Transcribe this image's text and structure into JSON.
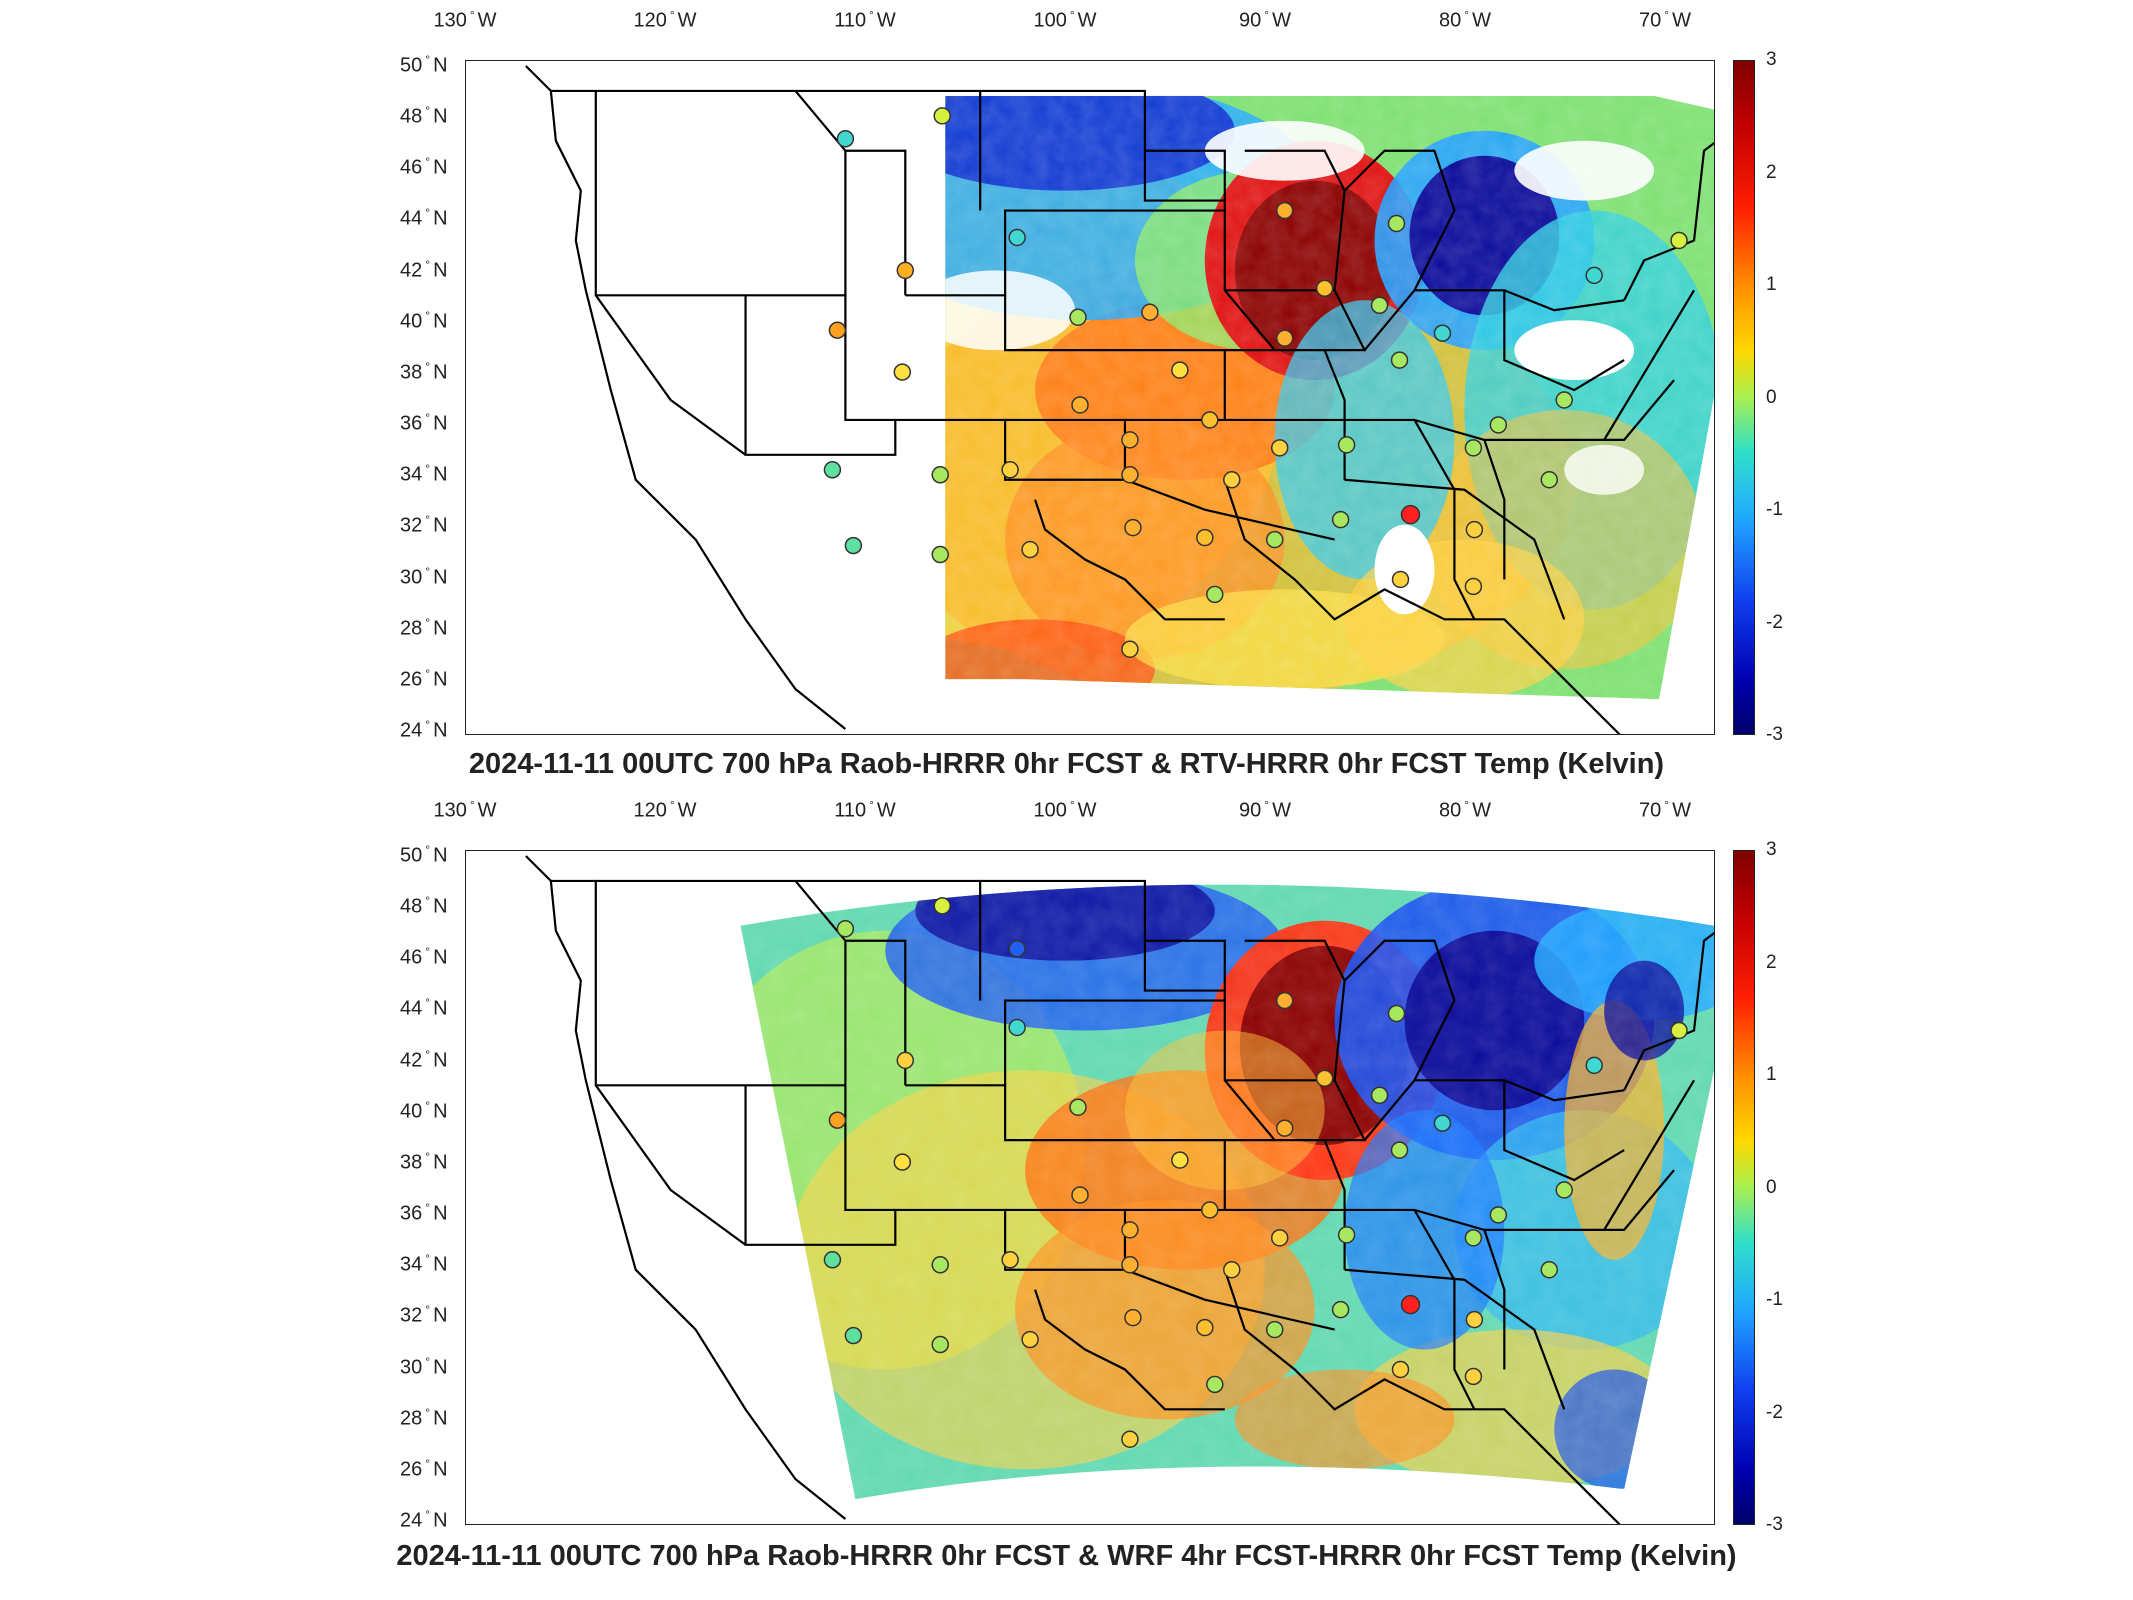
{
  "panels": [
    {
      "id": "top",
      "title": "2024-11-11 00UTC 700 hPa Raob-HRRR 0hr FCST & RTV-HRRR 0hr FCST Temp (Kelvin)"
    },
    {
      "id": "bottom",
      "title": "2024-11-11 00UTC 700 hPa Raob-HRRR 0hr FCST & WRF 4hr FCST-HRRR 0hr FCST Temp (Kelvin)"
    }
  ],
  "axes": {
    "lon_ticks": [
      {
        "value": "130",
        "hemi": "W"
      },
      {
        "value": "120",
        "hemi": "W"
      },
      {
        "value": "110",
        "hemi": "W"
      },
      {
        "value": "100",
        "hemi": "W"
      },
      {
        "value": "90",
        "hemi": "W"
      },
      {
        "value": "80",
        "hemi": "W"
      },
      {
        "value": "70",
        "hemi": "W"
      }
    ],
    "lat_ticks": [
      {
        "value": "50",
        "hemi": "N"
      },
      {
        "value": "48",
        "hemi": "N"
      },
      {
        "value": "46",
        "hemi": "N"
      },
      {
        "value": "44",
        "hemi": "N"
      },
      {
        "value": "42",
        "hemi": "N"
      },
      {
        "value": "40",
        "hemi": "N"
      },
      {
        "value": "38",
        "hemi": "N"
      },
      {
        "value": "36",
        "hemi": "N"
      },
      {
        "value": "34",
        "hemi": "N"
      },
      {
        "value": "32",
        "hemi": "N"
      },
      {
        "value": "30",
        "hemi": "N"
      },
      {
        "value": "28",
        "hemi": "N"
      },
      {
        "value": "26",
        "hemi": "N"
      },
      {
        "value": "24",
        "hemi": "N"
      }
    ],
    "colorbar_ticks": [
      "3",
      "2",
      "1",
      "0",
      "-1",
      "-2",
      "-3"
    ],
    "colorbar_range": [
      -3,
      3
    ]
  },
  "colors": {
    "dark_red": "#8b0000",
    "red": "#e02020",
    "orange": "#ff8c1a",
    "yellow": "#ffe040",
    "green": "#8ce868",
    "cyan": "#40d8e0",
    "blue": "#2060ff",
    "dark_blue": "#0a0a9a",
    "missing": "#ffffff"
  }
}
